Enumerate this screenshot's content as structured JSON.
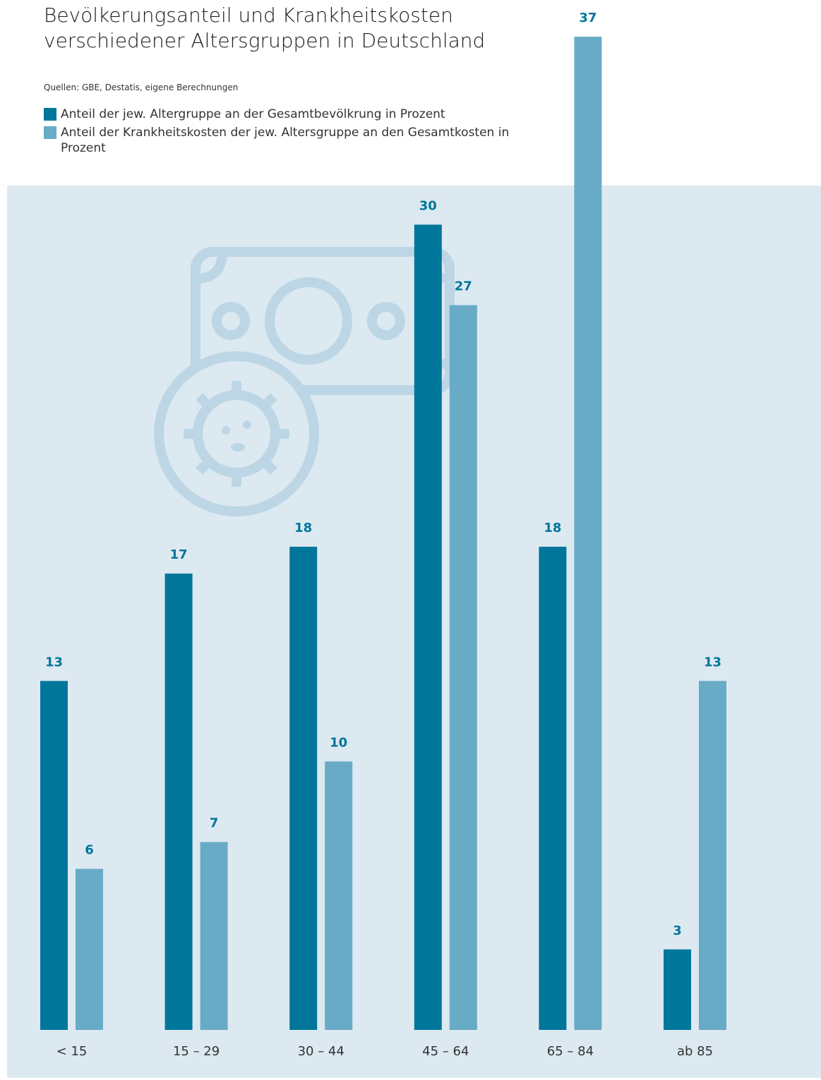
{
  "chart_data": {
    "type": "bar",
    "title": "Bevölkerungsanteil und Krankheitskosten verschiedener Altersgruppen in Deutschland",
    "source": "Quellen: GBE, Destatis, eigene Berechnungen",
    "categories": [
      "< 15",
      "15 – 29",
      "30 – 44",
      "45 – 64",
      "65 – 84",
      "ab 85"
    ],
    "series": [
      {
        "name": "Anteil der jew. Altergruppe an der Gesamtbevölkrung in Prozent",
        "color": "#00769a",
        "values": [
          13,
          17,
          18,
          30,
          18,
          3
        ]
      },
      {
        "name": "Anteil der Krankheitskosten der jew. Altersgruppe an den Gesamtkosten in Prozent",
        "color": "#68abc7",
        "values": [
          6,
          7,
          10,
          27,
          37,
          13
        ]
      }
    ],
    "ylim": [
      0,
      38
    ],
    "legend": "top-left"
  }
}
